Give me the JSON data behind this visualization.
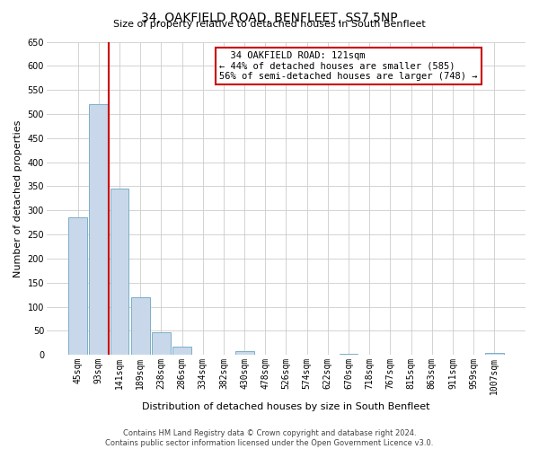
{
  "title": "34, OAKFIELD ROAD, BENFLEET, SS7 5NP",
  "subtitle": "Size of property relative to detached houses in South Benfleet",
  "xlabel": "Distribution of detached houses by size in South Benfleet",
  "ylabel": "Number of detached properties",
  "footer_line1": "Contains HM Land Registry data © Crown copyright and database right 2024.",
  "footer_line2": "Contains public sector information licensed under the Open Government Licence v3.0.",
  "bar_labels": [
    "45sqm",
    "93sqm",
    "141sqm",
    "189sqm",
    "238sqm",
    "286sqm",
    "334sqm",
    "382sqm",
    "430sqm",
    "478sqm",
    "526sqm",
    "574sqm",
    "622sqm",
    "670sqm",
    "718sqm",
    "767sqm",
    "815sqm",
    "863sqm",
    "911sqm",
    "959sqm",
    "1007sqm"
  ],
  "bar_values": [
    285,
    520,
    345,
    120,
    48,
    18,
    0,
    0,
    8,
    0,
    0,
    0,
    0,
    2,
    0,
    0,
    0,
    0,
    0,
    0,
    4
  ],
  "bar_color": "#c8d8ea",
  "bar_edge_color": "#7aafc8",
  "ylim": [
    0,
    650
  ],
  "yticks": [
    0,
    50,
    100,
    150,
    200,
    250,
    300,
    350,
    400,
    450,
    500,
    550,
    600,
    650
  ],
  "vline_color": "#cc0000",
  "vline_x_index": 1.5,
  "annotation_title": "34 OAKFIELD ROAD: 121sqm",
  "annotation_line2": "← 44% of detached houses are smaller (585)",
  "annotation_line3": "56% of semi-detached houses are larger (748) →",
  "background_color": "#ffffff",
  "grid_color": "#cccccc",
  "title_fontsize": 10,
  "subtitle_fontsize": 8,
  "xlabel_fontsize": 8,
  "ylabel_fontsize": 8,
  "tick_fontsize": 7,
  "annotation_fontsize": 7.5,
  "footer_fontsize": 6
}
